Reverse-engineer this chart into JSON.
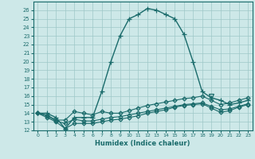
{
  "title": "",
  "xlabel": "Humidex (Indice chaleur)",
  "background_color": "#cde8e8",
  "grid_color": "#9ec8c8",
  "line_color": "#1a6b6b",
  "xlim": [
    -0.5,
    23.5
  ],
  "ylim": [
    12,
    27
  ],
  "yticks": [
    12,
    13,
    14,
    15,
    16,
    17,
    18,
    19,
    20,
    21,
    22,
    23,
    24,
    25,
    26
  ],
  "xticks": [
    0,
    1,
    2,
    3,
    4,
    5,
    6,
    7,
    8,
    9,
    10,
    11,
    12,
    13,
    14,
    15,
    16,
    17,
    18,
    19,
    20,
    21,
    22,
    23
  ],
  "series": [
    {
      "x": [
        0,
        1,
        2,
        3,
        4,
        5,
        6,
        7,
        8,
        9,
        10,
        11,
        12,
        13,
        14,
        15,
        16,
        17,
        18,
        19,
        20,
        21,
        22,
        23
      ],
      "y": [
        14.0,
        14.0,
        13.5,
        12.2,
        13.5,
        13.5,
        13.5,
        16.5,
        20.0,
        23.0,
        25.0,
        25.5,
        26.2,
        26.0,
        25.5,
        25.0,
        23.2,
        20.0,
        16.5,
        15.8,
        15.5,
        15.0,
        15.2,
        15.5
      ],
      "marker": "+",
      "markersize": 4,
      "linewidth": 1.0
    },
    {
      "x": [
        0,
        1,
        2,
        3,
        4,
        5,
        6,
        7,
        8,
        9,
        10,
        11,
        12,
        13,
        14,
        15,
        16,
        17,
        18,
        19,
        20,
        21,
        22,
        23
      ],
      "y": [
        14.0,
        13.8,
        13.2,
        13.2,
        14.2,
        14.0,
        13.8,
        14.2,
        14.0,
        14.0,
        14.3,
        14.6,
        14.9,
        15.1,
        15.3,
        15.5,
        15.7,
        15.8,
        16.0,
        15.5,
        15.0,
        15.2,
        15.5,
        15.8
      ],
      "marker": "D",
      "markersize": 2.5,
      "linewidth": 0.8
    },
    {
      "x": [
        0,
        1,
        2,
        3,
        4,
        5,
        6,
        7,
        8,
        9,
        10,
        11,
        12,
        13,
        14,
        15,
        16,
        17,
        18,
        19,
        20,
        21,
        22,
        23
      ],
      "y": [
        14.0,
        13.7,
        13.1,
        12.8,
        13.3,
        13.1,
        13.1,
        13.3,
        13.5,
        13.6,
        13.8,
        14.0,
        14.2,
        14.4,
        14.6,
        14.8,
        15.0,
        15.1,
        15.2,
        14.8,
        14.4,
        14.5,
        14.8,
        15.1
      ],
      "marker": "D",
      "markersize": 2.5,
      "linewidth": 0.8
    },
    {
      "x": [
        0,
        1,
        2,
        3,
        4,
        5,
        6,
        7,
        8,
        9,
        10,
        11,
        12,
        13,
        14,
        15,
        16,
        17,
        18,
        19,
        20,
        21,
        22,
        23
      ],
      "y": [
        14.0,
        13.5,
        13.0,
        12.2,
        12.8,
        12.8,
        12.8,
        13.0,
        13.2,
        13.3,
        13.5,
        13.7,
        14.0,
        14.2,
        14.4,
        14.7,
        14.9,
        15.0,
        15.1,
        14.6,
        14.1,
        14.3,
        14.7,
        15.0
      ],
      "marker": "D",
      "markersize": 2.5,
      "linewidth": 0.8
    },
    {
      "x": [
        19
      ],
      "y": [
        16.0
      ],
      "marker": "v",
      "markersize": 4,
      "linewidth": 0
    }
  ]
}
